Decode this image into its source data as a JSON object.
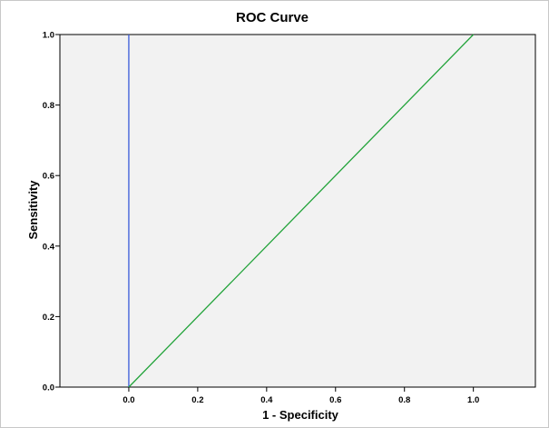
{
  "chart_data": {
    "type": "line",
    "title": "ROC Curve",
    "xlabel": "1 - Specificity",
    "ylabel": "Sensitivity",
    "xlim": [
      -0.2,
      1.18
    ],
    "ylim": [
      0.0,
      1.0
    ],
    "xticks": [
      0.0,
      0.2,
      0.4,
      0.6,
      0.8,
      1.0
    ],
    "xtick_labels": [
      "0.0",
      "0.2",
      "0.4",
      "0.6",
      "0.8",
      "1.0"
    ],
    "yticks": [
      0.0,
      0.2,
      0.4,
      0.6,
      0.8,
      1.0
    ],
    "ytick_labels": [
      "0.0",
      "0.2",
      "0.4",
      "0.6",
      "0.8",
      "1.0"
    ],
    "grid": false,
    "legend": "none",
    "plot_background": "#f2f2f2",
    "series": [
      {
        "color": "#3a5bd9",
        "x": [
          0.0,
          0.0
        ],
        "y": [
          0.0,
          1.0
        ]
      },
      {
        "color": "#22a33a",
        "x": [
          0.0,
          1.0
        ],
        "y": [
          0.0,
          1.0
        ]
      }
    ]
  }
}
